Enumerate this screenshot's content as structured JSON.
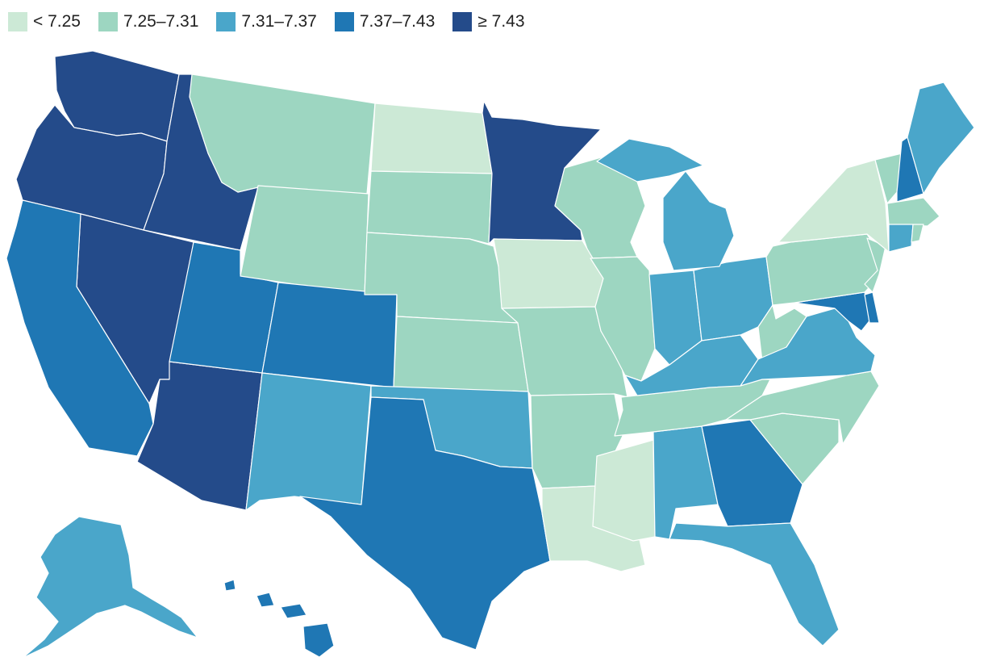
{
  "legend": [
    {
      "label": "< 7.25",
      "color": "#cce9d6"
    },
    {
      "label": "7.25–7.31",
      "color": "#9dd6c1"
    },
    {
      "label": "7.31–7.37",
      "color": "#4aa6ca"
    },
    {
      "label": "7.37–7.43",
      "color": "#1f77b4"
    },
    {
      "label": "≥ 7.43",
      "color": "#244b8a"
    }
  ],
  "states": [
    {
      "code": "WA",
      "bin": 4
    },
    {
      "code": "OR",
      "bin": 4
    },
    {
      "code": "ID",
      "bin": 4
    },
    {
      "code": "NV",
      "bin": 4
    },
    {
      "code": "AZ",
      "bin": 4
    },
    {
      "code": "MN",
      "bin": 4
    },
    {
      "code": "CA",
      "bin": 3
    },
    {
      "code": "UT",
      "bin": 3
    },
    {
      "code": "CO",
      "bin": 3
    },
    {
      "code": "TX",
      "bin": 3
    },
    {
      "code": "GA",
      "bin": 3
    },
    {
      "code": "NH",
      "bin": 3
    },
    {
      "code": "MD",
      "bin": 3
    },
    {
      "code": "DE",
      "bin": 3
    },
    {
      "code": "HI",
      "bin": 3
    },
    {
      "code": "NM",
      "bin": 2
    },
    {
      "code": "OK",
      "bin": 2
    },
    {
      "code": "AL",
      "bin": 2
    },
    {
      "code": "FL",
      "bin": 2
    },
    {
      "code": "MI",
      "bin": 2
    },
    {
      "code": "IN",
      "bin": 2
    },
    {
      "code": "OH",
      "bin": 2
    },
    {
      "code": "KY",
      "bin": 2
    },
    {
      "code": "VA",
      "bin": 2
    },
    {
      "code": "ME",
      "bin": 2
    },
    {
      "code": "CT",
      "bin": 2
    },
    {
      "code": "AK",
      "bin": 2
    },
    {
      "code": "MT",
      "bin": 1
    },
    {
      "code": "WY",
      "bin": 1
    },
    {
      "code": "SD",
      "bin": 1
    },
    {
      "code": "NE",
      "bin": 1
    },
    {
      "code": "KS",
      "bin": 1
    },
    {
      "code": "MO",
      "bin": 1
    },
    {
      "code": "AR",
      "bin": 1
    },
    {
      "code": "WI",
      "bin": 1
    },
    {
      "code": "IL",
      "bin": 1
    },
    {
      "code": "TN",
      "bin": 1
    },
    {
      "code": "NC",
      "bin": 1
    },
    {
      "code": "SC",
      "bin": 1
    },
    {
      "code": "WV",
      "bin": 1
    },
    {
      "code": "PA",
      "bin": 1
    },
    {
      "code": "NJ",
      "bin": 1
    },
    {
      "code": "VT",
      "bin": 1
    },
    {
      "code": "MA",
      "bin": 1
    },
    {
      "code": "RI",
      "bin": 1
    },
    {
      "code": "ND",
      "bin": 0
    },
    {
      "code": "IA",
      "bin": 0
    },
    {
      "code": "LA",
      "bin": 0
    },
    {
      "code": "MS",
      "bin": 0
    },
    {
      "code": "NY",
      "bin": 0
    }
  ]
}
